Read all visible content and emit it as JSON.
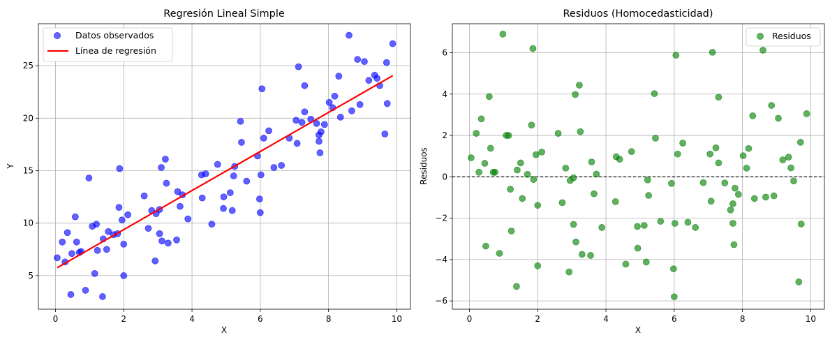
{
  "chart_data": [
    {
      "type": "scatter",
      "title": "Regresión Lineal Simple",
      "xlabel": "X",
      "ylabel": "Y",
      "xlim": [
        -0.5,
        10.4
      ],
      "ylim": [
        1.8,
        29.0
      ],
      "xticks": [
        0,
        2,
        4,
        6,
        8,
        10
      ],
      "yticks": [
        5,
        10,
        15,
        20,
        25
      ],
      "grid": true,
      "legend_position": "top-left",
      "series": [
        {
          "name": "Datos observados",
          "kind": "scatter",
          "color": "#0000ff",
          "points": [
            [
              0.05,
              6.7
            ],
            [
              0.2,
              8.2
            ],
            [
              0.28,
              6.3
            ],
            [
              0.35,
              9.1
            ],
            [
              0.45,
              3.2
            ],
            [
              0.48,
              7.1
            ],
            [
              0.58,
              10.6
            ],
            [
              0.62,
              8.2
            ],
            [
              0.7,
              7.2
            ],
            [
              0.75,
              7.3
            ],
            [
              0.88,
              3.6
            ],
            [
              0.98,
              14.3
            ],
            [
              1.08,
              9.7
            ],
            [
              1.15,
              5.2
            ],
            [
              1.2,
              9.9
            ],
            [
              1.23,
              7.4
            ],
            [
              1.38,
              3.0
            ],
            [
              1.4,
              8.5
            ],
            [
              1.5,
              7.5
            ],
            [
              1.55,
              9.2
            ],
            [
              1.7,
              8.9
            ],
            [
              1.82,
              9.0
            ],
            [
              1.86,
              11.5
            ],
            [
              1.88,
              15.2
            ],
            [
              1.95,
              10.3
            ],
            [
              2.0,
              8.0
            ],
            [
              2.0,
              5.0
            ],
            [
              2.12,
              10.8
            ],
            [
              2.6,
              12.6
            ],
            [
              2.72,
              9.5
            ],
            [
              2.82,
              11.2
            ],
            [
              2.92,
              6.4
            ],
            [
              2.95,
              10.9
            ],
            [
              3.05,
              11.3
            ],
            [
              3.05,
              9.0
            ],
            [
              3.1,
              15.3
            ],
            [
              3.12,
              8.3
            ],
            [
              3.22,
              16.1
            ],
            [
              3.25,
              13.8
            ],
            [
              3.3,
              8.1
            ],
            [
              3.55,
              8.4
            ],
            [
              3.58,
              13.0
            ],
            [
              3.65,
              11.6
            ],
            [
              3.72,
              12.7
            ],
            [
              3.88,
              10.4
            ],
            [
              4.3,
              12.4
            ],
            [
              4.28,
              14.6
            ],
            [
              4.4,
              14.7
            ],
            [
              4.58,
              9.9
            ],
            [
              4.75,
              15.6
            ],
            [
              4.92,
              11.4
            ],
            [
              4.93,
              12.5
            ],
            [
              5.12,
              12.9
            ],
            [
              5.18,
              11.2
            ],
            [
              5.22,
              14.5
            ],
            [
              5.25,
              15.4
            ],
            [
              5.42,
              19.7
            ],
            [
              5.45,
              17.7
            ],
            [
              5.6,
              14.0
            ],
            [
              5.92,
              16.4
            ],
            [
              5.98,
              12.3
            ],
            [
              6.0,
              11.0
            ],
            [
              6.02,
              14.6
            ],
            [
              6.05,
              22.8
            ],
            [
              6.1,
              18.1
            ],
            [
              6.25,
              18.8
            ],
            [
              6.4,
              15.3
            ],
            [
              6.62,
              15.5
            ],
            [
              6.85,
              18.1
            ],
            [
              7.05,
              19.8
            ],
            [
              7.08,
              17.6
            ],
            [
              7.12,
              24.9
            ],
            [
              7.22,
              19.6
            ],
            [
              7.3,
              23.1
            ],
            [
              7.3,
              20.6
            ],
            [
              7.48,
              19.9
            ],
            [
              7.65,
              19.5
            ],
            [
              7.72,
              18.4
            ],
            [
              7.72,
              17.8
            ],
            [
              7.75,
              16.7
            ],
            [
              7.78,
              18.7
            ],
            [
              7.88,
              19.4
            ],
            [
              8.02,
              21.5
            ],
            [
              8.12,
              21.0
            ],
            [
              8.18,
              22.1
            ],
            [
              8.3,
              24.0
            ],
            [
              8.35,
              20.1
            ],
            [
              8.6,
              27.9
            ],
            [
              8.68,
              20.7
            ],
            [
              8.85,
              25.6
            ],
            [
              8.92,
              21.3
            ],
            [
              9.05,
              25.4
            ],
            [
              9.18,
              23.6
            ],
            [
              9.35,
              24.1
            ],
            [
              9.42,
              23.8
            ],
            [
              9.5,
              23.1
            ],
            [
              9.65,
              18.5
            ],
            [
              9.7,
              25.3
            ],
            [
              9.72,
              21.4
            ],
            [
              9.88,
              27.1
            ]
          ]
        },
        {
          "name": "Línea de regresión",
          "kind": "line",
          "color": "#ff0000",
          "points": [
            [
              0.05,
              5.75
            ],
            [
              9.88,
              24.05
            ]
          ]
        }
      ]
    },
    {
      "type": "scatter",
      "title": "Residuos (Homocedasticidad)",
      "xlabel": "X",
      "ylabel": "Residuos",
      "xlim": [
        -0.5,
        10.4
      ],
      "ylim": [
        -6.4,
        7.4
      ],
      "xticks": [
        0,
        2,
        4,
        6,
        8,
        10
      ],
      "yticks": [
        -6,
        -4,
        -2,
        0,
        2,
        4,
        6
      ],
      "grid": true,
      "legend_position": "top-right",
      "reference_line": {
        "y": 0,
        "style": "dashed",
        "color": "#000000"
      },
      "series": [
        {
          "name": "Residuos",
          "kind": "scatter",
          "color": "#008000",
          "points": [
            [
              0.05,
              0.92
            ],
            [
              0.2,
              2.1
            ],
            [
              0.28,
              0.22
            ],
            [
              0.35,
              2.8
            ],
            [
              0.45,
              0.65
            ],
            [
              0.48,
              -3.35
            ],
            [
              0.58,
              3.88
            ],
            [
              0.62,
              1.38
            ],
            [
              0.7,
              0.22
            ],
            [
              0.75,
              0.22
            ],
            [
              0.88,
              -3.7
            ],
            [
              0.98,
              6.9
            ],
            [
              1.08,
              2.0
            ],
            [
              1.15,
              2.0
            ],
            [
              1.2,
              -0.6
            ],
            [
              1.23,
              -2.62
            ],
            [
              1.38,
              -5.3
            ],
            [
              1.4,
              0.33
            ],
            [
              1.5,
              0.67
            ],
            [
              1.55,
              -1.05
            ],
            [
              1.7,
              0.12
            ],
            [
              1.82,
              2.5
            ],
            [
              1.86,
              6.2
            ],
            [
              1.88,
              -0.13
            ],
            [
              1.95,
              1.07
            ],
            [
              2.0,
              -1.38
            ],
            [
              2.0,
              -4.3
            ],
            [
              2.12,
              1.2
            ],
            [
              2.6,
              2.1
            ],
            [
              2.72,
              -1.25
            ],
            [
              2.82,
              0.42
            ],
            [
              2.92,
              -4.6
            ],
            [
              2.95,
              -0.18
            ],
            [
              3.05,
              -2.3
            ],
            [
              3.05,
              -0.05
            ],
            [
              3.1,
              3.98
            ],
            [
              3.12,
              -3.15
            ],
            [
              3.22,
              4.43
            ],
            [
              3.25,
              2.18
            ],
            [
              3.3,
              -3.75
            ],
            [
              3.55,
              -3.8
            ],
            [
              3.58,
              0.72
            ],
            [
              3.65,
              -0.82
            ],
            [
              3.72,
              0.13
            ],
            [
              3.88,
              -2.45
            ],
            [
              4.3,
              0.97
            ],
            [
              4.28,
              -1.2
            ],
            [
              4.4,
              0.85
            ],
            [
              4.58,
              -4.22
            ],
            [
              4.75,
              1.22
            ],
            [
              4.92,
              -2.4
            ],
            [
              4.93,
              -3.45
            ],
            [
              5.12,
              -2.35
            ],
            [
              5.18,
              -4.12
            ],
            [
              5.22,
              -0.15
            ],
            [
              5.25,
              -0.9
            ],
            [
              5.42,
              4.02
            ],
            [
              5.45,
              1.87
            ],
            [
              5.6,
              -2.15
            ],
            [
              5.92,
              -0.32
            ],
            [
              5.98,
              -4.45
            ],
            [
              6.0,
              -5.8
            ],
            [
              6.02,
              -2.25
            ],
            [
              6.05,
              5.88
            ],
            [
              6.1,
              1.1
            ],
            [
              6.25,
              1.63
            ],
            [
              6.4,
              -2.2
            ],
            [
              6.62,
              -2.45
            ],
            [
              6.85,
              -0.28
            ],
            [
              7.05,
              1.1
            ],
            [
              7.08,
              -1.18
            ],
            [
              7.12,
              6.02
            ],
            [
              7.22,
              1.4
            ],
            [
              7.3,
              3.85
            ],
            [
              7.3,
              0.67
            ],
            [
              7.48,
              -0.3
            ],
            [
              7.65,
              -1.6
            ],
            [
              7.72,
              -1.3
            ],
            [
              7.72,
              -2.25
            ],
            [
              7.75,
              -3.28
            ],
            [
              7.78,
              -0.55
            ],
            [
              7.88,
              -0.85
            ],
            [
              8.02,
              1.02
            ],
            [
              8.12,
              0.42
            ],
            [
              8.18,
              1.37
            ],
            [
              8.3,
              2.95
            ],
            [
              8.35,
              -1.05
            ],
            [
              8.6,
              6.12
            ],
            [
              8.68,
              -0.98
            ],
            [
              8.85,
              3.45
            ],
            [
              8.92,
              -0.92
            ],
            [
              9.05,
              2.83
            ],
            [
              9.18,
              0.82
            ],
            [
              9.35,
              0.95
            ],
            [
              9.42,
              0.43
            ],
            [
              9.5,
              -0.2
            ],
            [
              9.65,
              -5.08
            ],
            [
              9.7,
              1.67
            ],
            [
              9.72,
              -2.28
            ],
            [
              9.88,
              3.05
            ]
          ]
        }
      ]
    }
  ]
}
